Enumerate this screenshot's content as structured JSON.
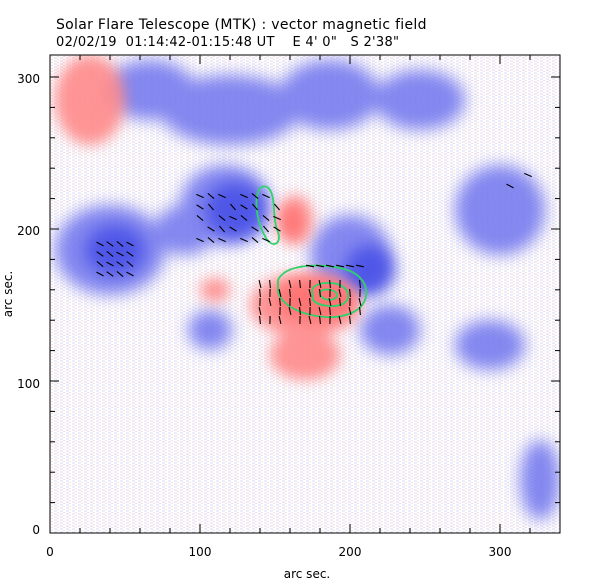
{
  "header": {
    "title": "Solar Flare Telescope (MTK) : vector magnetic field",
    "date": "02/02/19",
    "time_range": "01:14:42-01:15:48 UT",
    "pos_ew": "E 4' 0\"",
    "pos_ns": "S 2'38\""
  },
  "axes": {
    "xlabel": "arc sec.",
    "ylabel": "arc sec.",
    "x_ticks": [
      "0",
      "100",
      "200",
      "300"
    ],
    "y_ticks": [
      "0",
      "100",
      "200",
      "300"
    ],
    "xlim": [
      0,
      340
    ],
    "ylim": [
      0,
      312
    ]
  },
  "colors": {
    "positive_polarity": "#ff8a8a",
    "negative_polarity": "#6f75ee",
    "contour": "#2fd36b",
    "vectors": "#000000",
    "frame": "#000000"
  }
}
